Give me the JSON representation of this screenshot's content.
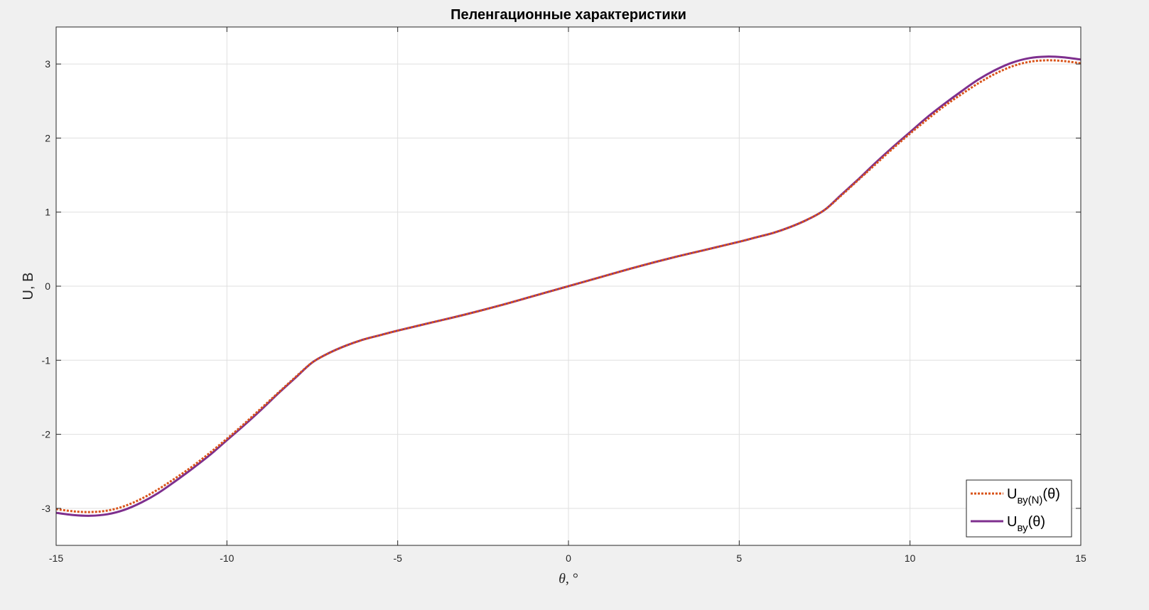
{
  "chart_data": {
    "type": "line",
    "title": "Пеленгационные характеристики",
    "xlabel_symbol": "θ",
    "xlabel_unit": ", °",
    "ylabel": "U, В",
    "xlim": [
      -15,
      15
    ],
    "ylim": [
      -3.5,
      3.5
    ],
    "xticks": [
      -15,
      -10,
      -5,
      0,
      5,
      10,
      15
    ],
    "yticks": [
      -3,
      -2,
      -1,
      0,
      1,
      2,
      3
    ],
    "grid": true,
    "legend_position": "bottom-right",
    "series": [
      {
        "name_main": "U",
        "name_sub": "ву(N)",
        "name_arg": "(θ)",
        "style": "dotted",
        "color": "#d95319",
        "x": [
          -15,
          -14.5,
          -14,
          -13.5,
          -13,
          -12.5,
          -12,
          -11.5,
          -11,
          -10.5,
          -10,
          -9.5,
          -9,
          -8.5,
          -8,
          -7.5,
          -7,
          -6.5,
          -6,
          -5.5,
          -5,
          -4,
          -3,
          -2,
          -1,
          0,
          1,
          2,
          3,
          4,
          5,
          5.5,
          6,
          6.5,
          7,
          7.5,
          8,
          8.5,
          9,
          9.5,
          10,
          10.5,
          11,
          11.5,
          12,
          12.5,
          13,
          13.5,
          14,
          14.5,
          15
        ],
        "y": [
          -3.01,
          -3.04,
          -3.05,
          -3.03,
          -2.97,
          -2.87,
          -2.74,
          -2.59,
          -2.43,
          -2.25,
          -2.06,
          -1.86,
          -1.65,
          -1.44,
          -1.23,
          -1.03,
          -0.9,
          -0.8,
          -0.72,
          -0.66,
          -0.6,
          -0.49,
          -0.38,
          -0.26,
          -0.13,
          0,
          0.13,
          0.26,
          0.38,
          0.49,
          0.6,
          0.66,
          0.72,
          0.8,
          0.9,
          1.03,
          1.23,
          1.44,
          1.65,
          1.86,
          2.06,
          2.25,
          2.43,
          2.59,
          2.74,
          2.87,
          2.97,
          3.03,
          3.05,
          3.04,
          3.01
        ]
      },
      {
        "name_main": "U",
        "name_sub": "ву",
        "name_arg": "(θ)",
        "style": "solid",
        "color": "#7e2f8e",
        "x": [
          -15,
          -14.5,
          -14,
          -13.5,
          -13,
          -12.5,
          -12,
          -11.5,
          -11,
          -10.5,
          -10,
          -9.5,
          -9,
          -8.5,
          -8,
          -7.5,
          -7,
          -6.5,
          -6,
          -5.5,
          -5,
          -4,
          -3,
          -2,
          -1,
          0,
          1,
          2,
          3,
          4,
          5,
          5.5,
          6,
          6.5,
          7,
          7.5,
          8,
          8.5,
          9,
          9.5,
          10,
          10.5,
          11,
          11.5,
          12,
          12.5,
          13,
          13.5,
          14,
          14.5,
          15
        ],
        "y": [
          -3.06,
          -3.09,
          -3.1,
          -3.08,
          -3.02,
          -2.92,
          -2.79,
          -2.63,
          -2.46,
          -2.28,
          -2.08,
          -1.88,
          -1.67,
          -1.45,
          -1.24,
          -1.03,
          -0.9,
          -0.8,
          -0.72,
          -0.66,
          -0.6,
          -0.49,
          -0.38,
          -0.26,
          -0.13,
          0,
          0.13,
          0.26,
          0.38,
          0.49,
          0.6,
          0.66,
          0.72,
          0.8,
          0.9,
          1.03,
          1.24,
          1.45,
          1.67,
          1.88,
          2.08,
          2.28,
          2.46,
          2.63,
          2.79,
          2.92,
          3.02,
          3.08,
          3.1,
          3.09,
          3.06
        ]
      }
    ]
  }
}
